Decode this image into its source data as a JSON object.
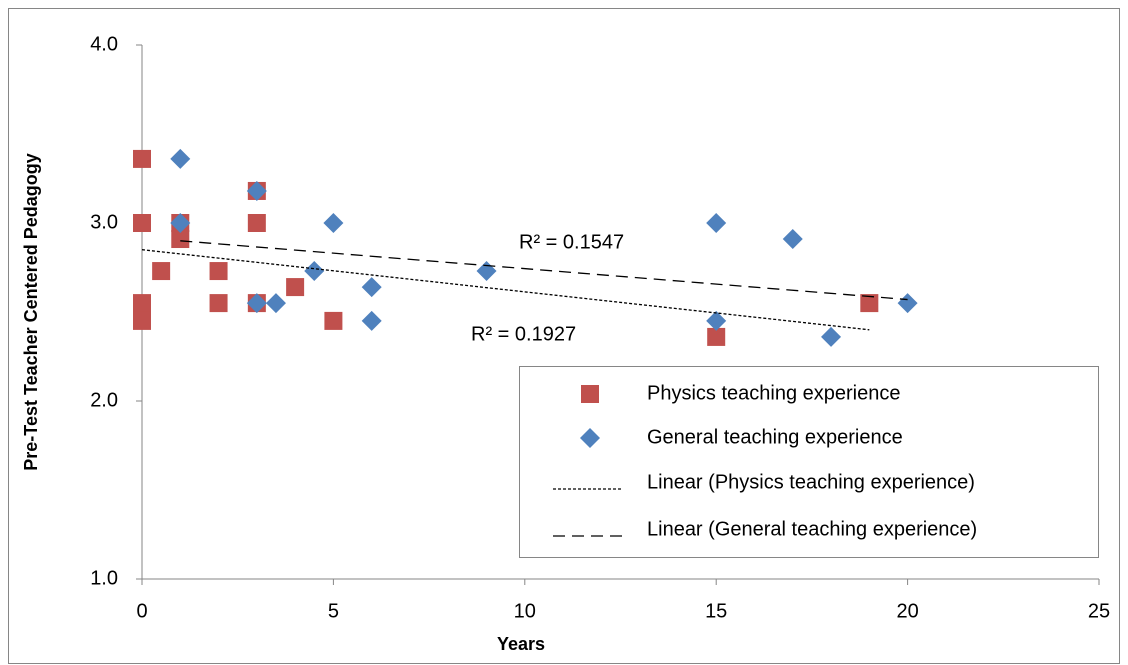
{
  "chart_data": {
    "type": "scatter",
    "xlabel": "Years",
    "ylabel": "Pre-Test Teacher Centered Pedagogy",
    "xlim": [
      0,
      25
    ],
    "xticks": [
      0,
      5,
      10,
      15,
      20,
      25
    ],
    "ylim": [
      1.0,
      4.0
    ],
    "yticks": [
      {
        "value": 1.0,
        "label": "1.0"
      },
      {
        "value": 2.0,
        "label": "2.0"
      },
      {
        "value": 3.0,
        "label": "3.0"
      },
      {
        "value": 4.0,
        "label": "4.0"
      }
    ],
    "grid": false,
    "legend": "lower right",
    "series": [
      {
        "name": "Physics  teaching experience",
        "color": "#c0504d",
        "marker": "square",
        "x": [
          0,
          0,
          0,
          0,
          0.5,
          1,
          1,
          2,
          2,
          3,
          3,
          3,
          4,
          5,
          15,
          19
        ],
        "values": [
          3.36,
          3.0,
          2.55,
          2.45,
          2.73,
          3.0,
          2.91,
          2.73,
          2.55,
          3.18,
          3.0,
          2.55,
          2.64,
          2.45,
          2.36,
          2.55
        ]
      },
      {
        "name": "General teaching experience",
        "color": "#4f81bd",
        "marker": "diamond",
        "x": [
          1,
          1,
          3,
          3,
          3.5,
          4.5,
          5,
          6,
          6,
          9,
          15,
          15,
          17,
          18,
          20
        ],
        "values": [
          3.36,
          3.0,
          3.18,
          2.55,
          2.55,
          2.73,
          3.0,
          2.64,
          2.45,
          2.73,
          3.0,
          2.45,
          2.91,
          2.36,
          2.55
        ]
      }
    ],
    "trendlines": [
      {
        "name": "Linear (Physics  teaching experience)",
        "style": "dotted",
        "x": [
          0,
          19
        ],
        "values": [
          2.85,
          2.4
        ],
        "r2_label": "R² = 0.1927"
      },
      {
        "name": "Linear (General teaching experience)",
        "style": "dashed",
        "x": [
          1,
          20
        ],
        "values": [
          2.9,
          2.57
        ],
        "r2_label": "R² = 0.1547"
      }
    ]
  }
}
